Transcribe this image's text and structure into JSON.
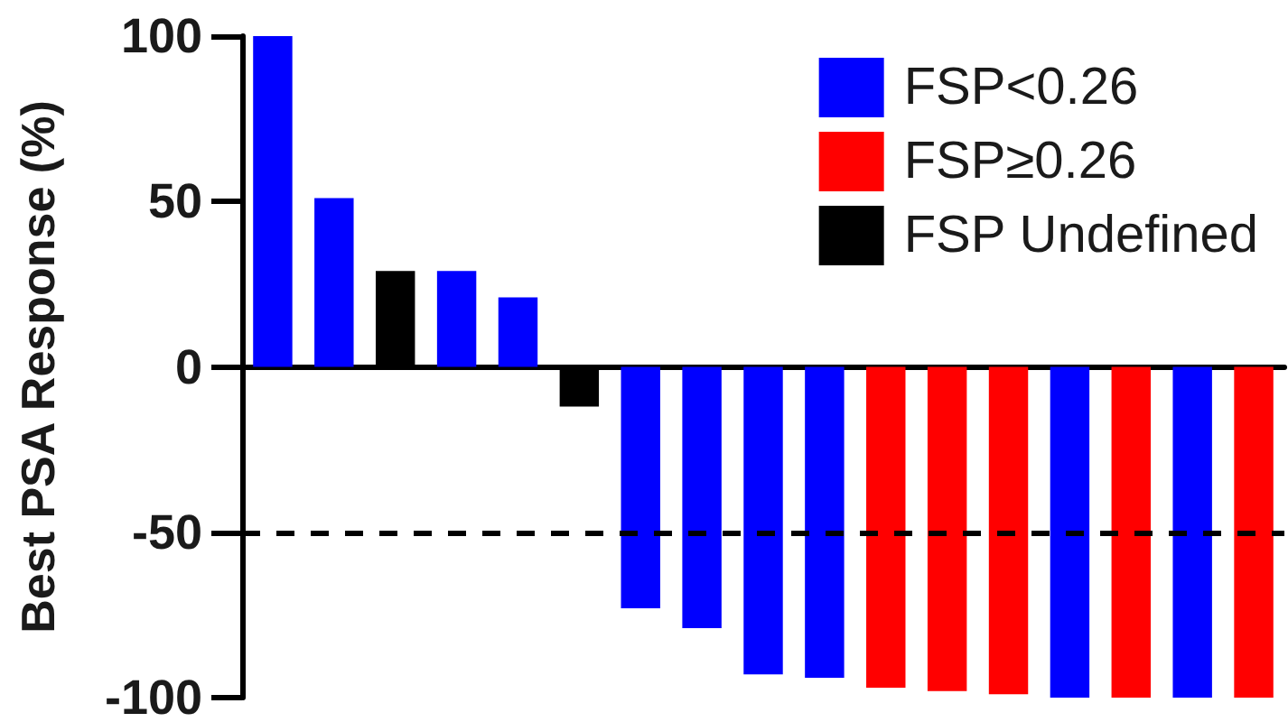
{
  "chart_data": {
    "type": "bar",
    "ylabel": "Best PSA Response (%)",
    "categories": [
      null,
      null,
      null,
      null,
      null,
      null,
      null,
      null,
      null,
      null,
      null,
      null,
      null,
      null,
      null,
      null,
      null
    ],
    "series": [
      {
        "name": "FSP<0.26",
        "color": "#0000ff",
        "values": [
          100,
          51,
          null,
          29,
          21,
          null,
          -73,
          -79,
          -93,
          -94,
          null,
          null,
          null,
          -100,
          null,
          -100,
          null
        ]
      },
      {
        "name": "FSP≥0.26",
        "color": "#ff0000",
        "values": [
          null,
          null,
          null,
          null,
          null,
          null,
          null,
          null,
          null,
          null,
          -97,
          -98,
          -99,
          null,
          -100,
          null,
          -100
        ]
      },
      {
        "name": "FSP Undefined",
        "color": "#000000",
        "values": [
          null,
          null,
          29,
          null,
          null,
          -12,
          null,
          null,
          null,
          null,
          null,
          null,
          null,
          null,
          null,
          null,
          null
        ]
      }
    ],
    "ylim": [
      -100,
      100
    ],
    "yticks": [
      -100,
      -50,
      0,
      50,
      100
    ],
    "ref_lines": [
      {
        "axis": "y",
        "value": -50,
        "color": "#000000",
        "line_style": "dashed"
      }
    ],
    "legend": "top right",
    "grid": false,
    "tick_labels": "y"
  }
}
